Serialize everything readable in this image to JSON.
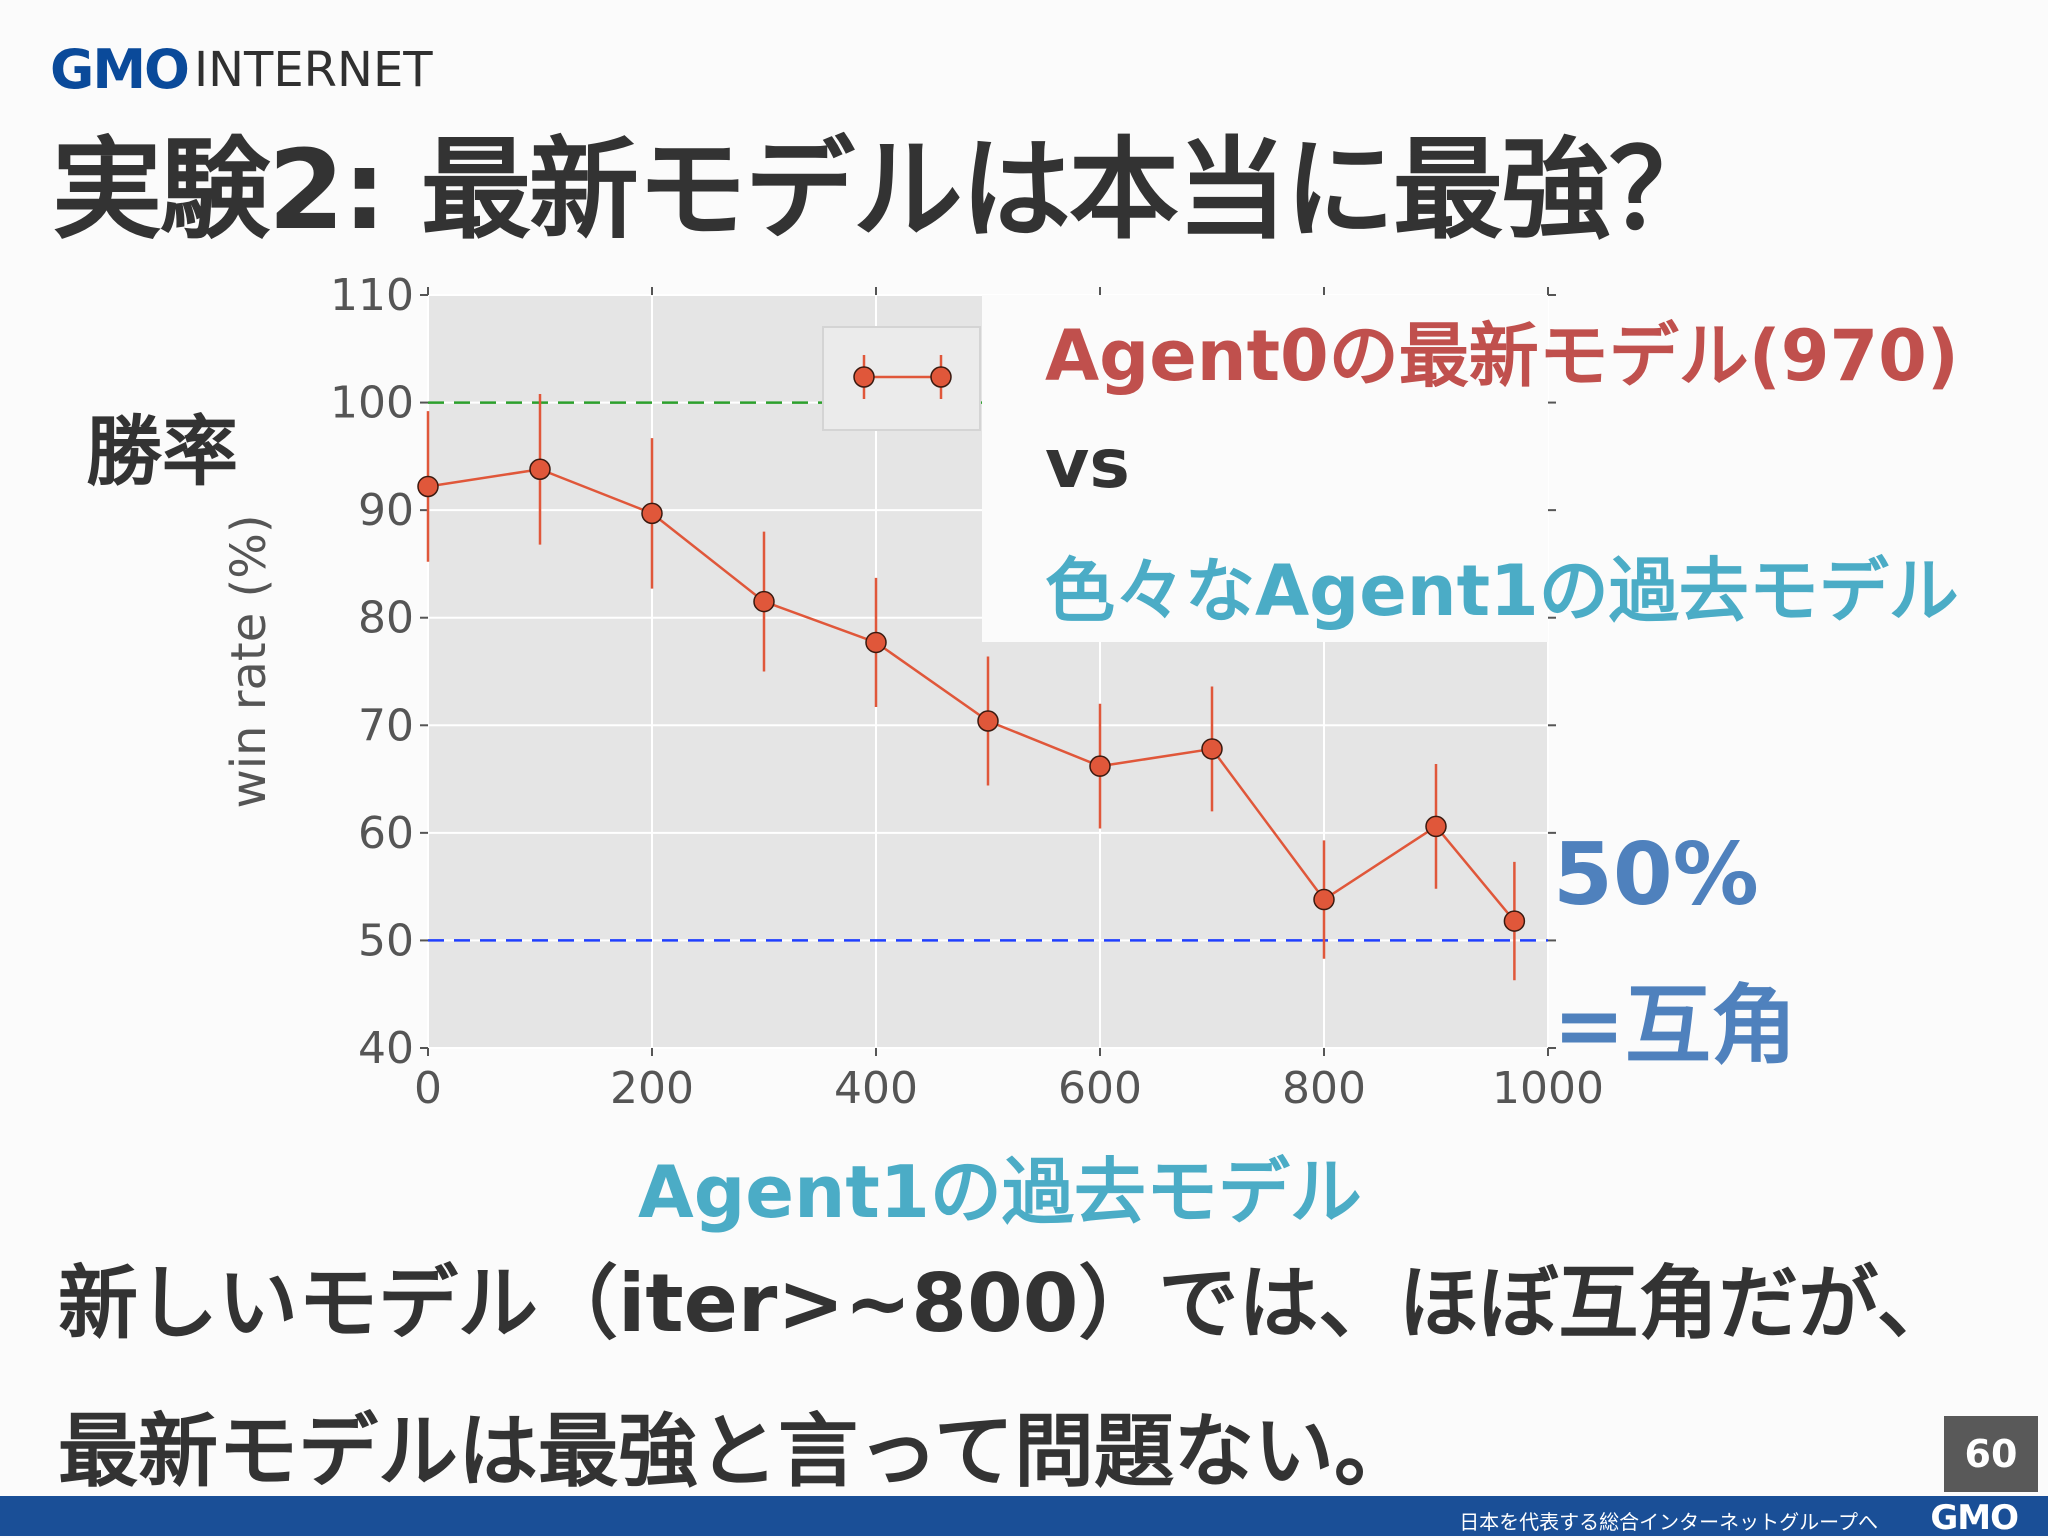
{
  "header": {
    "logo_gmo": "GMO",
    "logo_internet": "INTERNET",
    "title": "実験2: 最新モデルは本当に最強？"
  },
  "labels": {
    "y_axis_jp": "勝率",
    "x_axis_jp": "Agent1の過去モデル",
    "legend_line1": "Agent0の最新モデル(970)",
    "legend_line2": "vs",
    "legend_line3": "色々なAgent1の過去モデル",
    "annotation_line1": "50%",
    "annotation_line2": "=互角"
  },
  "conclusion": "新しいモデル（iter>~800）では、ほぼ互角だが、最新モデルは最強と言って問題ない。",
  "footer": {
    "page_number": "60",
    "tagline": "日本を代表する総合インターネットグループへ",
    "logo": "GMO"
  },
  "colors": {
    "series": "#e0573a",
    "green_line": "#2ca02c",
    "blue_line": "#1f3fff",
    "plot_bg": "#e5e5e5"
  },
  "chart_data": {
    "type": "line",
    "ylabel": "win rate (%)",
    "xlim": [
      0,
      1000
    ],
    "ylim": [
      40,
      110
    ],
    "xticks": [
      0,
      200,
      400,
      600,
      800,
      1000
    ],
    "yticks": [
      40,
      50,
      60,
      70,
      80,
      90,
      100,
      110
    ],
    "grid": true,
    "legend": "top-center",
    "series": [
      {
        "x": [
          0,
          100,
          200,
          300,
          400,
          500,
          600,
          700,
          800,
          900,
          970
        ],
        "y": [
          92.2,
          93.8,
          89.7,
          81.5,
          77.7,
          70.4,
          66.2,
          67.8,
          53.8,
          60.6,
          51.8
        ],
        "err": [
          7.0,
          7.0,
          7.0,
          6.5,
          6.0,
          6.0,
          5.8,
          5.8,
          5.5,
          5.8,
          5.5
        ]
      }
    ],
    "reference_lines": [
      {
        "y": 100,
        "style": "dashed",
        "color": "#2ca02c"
      },
      {
        "y": 50,
        "style": "dashed",
        "color": "#1f3fff"
      }
    ]
  }
}
